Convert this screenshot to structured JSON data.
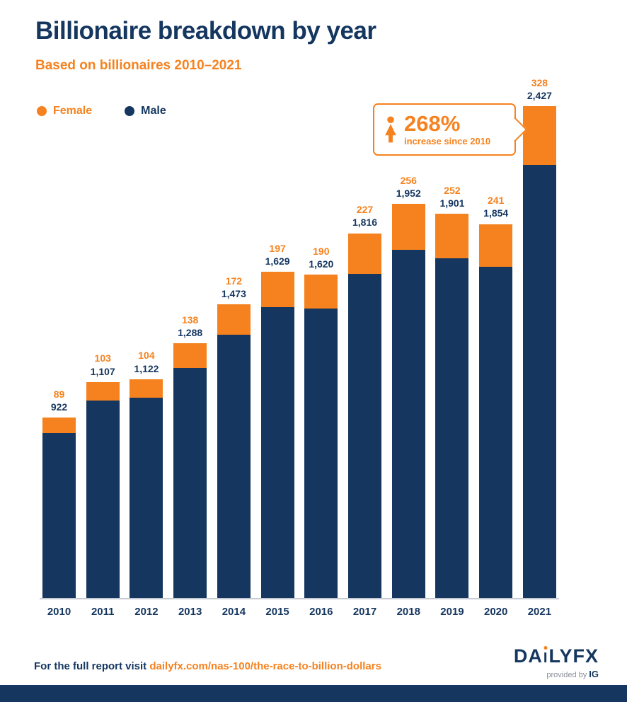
{
  "header": {
    "title": "Billionaire breakdown by year",
    "subtitle": "Based on billionaires 2010–2021"
  },
  "legend": {
    "female_label": "Female",
    "male_label": "Male"
  },
  "callout": {
    "value": "268%",
    "label": "increase since 2010"
  },
  "chart_data": {
    "type": "bar",
    "stacked": true,
    "title": "Billionaire breakdown by year",
    "subtitle": "Based on billionaires 2010–2021",
    "categories": [
      "2010",
      "2011",
      "2012",
      "2013",
      "2014",
      "2015",
      "2016",
      "2017",
      "2018",
      "2019",
      "2020",
      "2021"
    ],
    "series": [
      {
        "name": "Female",
        "color": "#f5821f",
        "values": [
          89,
          103,
          104,
          138,
          172,
          197,
          190,
          227,
          256,
          252,
          241,
          328
        ]
      },
      {
        "name": "Male",
        "color": "#14365f",
        "values": [
          922,
          1107,
          1122,
          1288,
          1473,
          1629,
          1620,
          1816,
          1952,
          1901,
          1854,
          2427
        ]
      }
    ],
    "annotation": {
      "value": "268%",
      "label": "increase since 2010"
    },
    "xlabel": "",
    "ylabel": "",
    "legend_position": "top-left",
    "grid": false
  },
  "footer": {
    "text_prefix": "For the full report visit ",
    "link": "dailyfx.com/nas-100/the-race-to-billion-dollars"
  },
  "logo": {
    "part1": "DA",
    "i_letter": "I",
    "part2": "LYFX",
    "provided_by": "provided by",
    "ig": "IG"
  },
  "colors": {
    "accent_orange": "#f5821f",
    "navy": "#14365f"
  }
}
